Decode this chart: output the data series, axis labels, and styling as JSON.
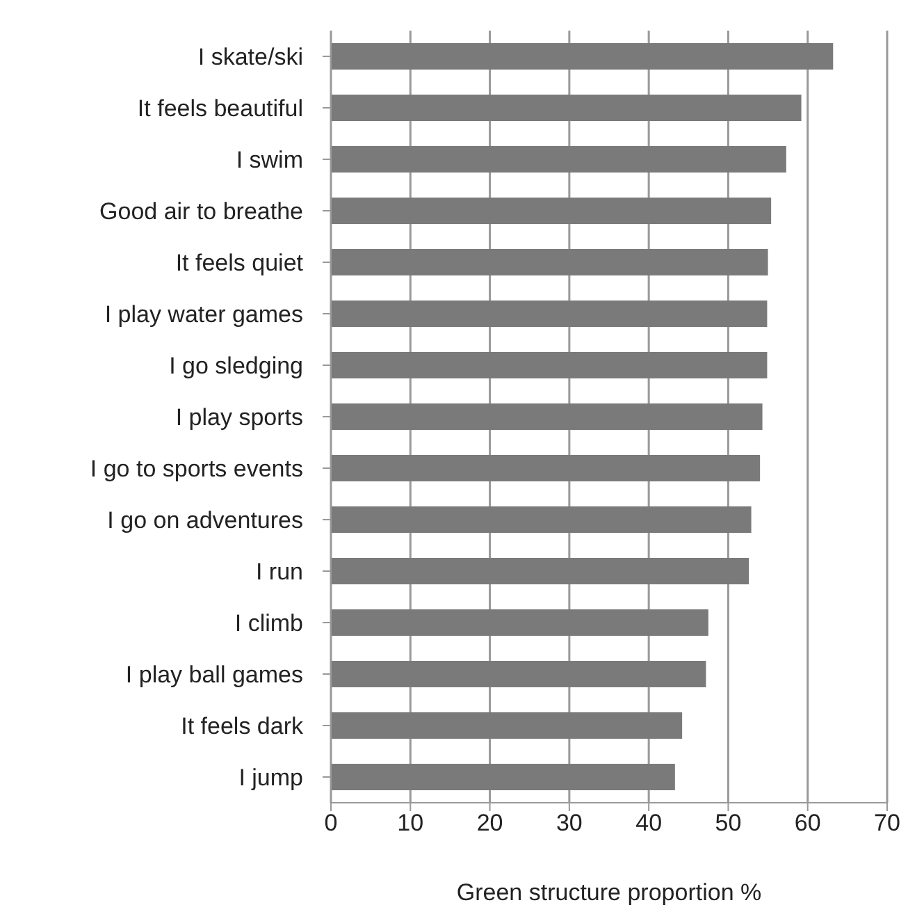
{
  "chart_data": {
    "type": "bar",
    "orientation": "horizontal",
    "xlabel": "Green structure proportion %",
    "categories": [
      "I skate/ski",
      "It feels beautiful",
      "I swim",
      "Good air to breathe",
      "It feels quiet",
      "I play water games",
      "I go sledging",
      "I play sports",
      "I go to sports events",
      "I go on adventures",
      "I run",
      "I climb",
      "I play ball games",
      "It feels dark",
      "I jump"
    ],
    "values": [
      63.2,
      59.2,
      57.3,
      55.4,
      55.0,
      54.9,
      54.9,
      54.3,
      54.0,
      52.9,
      52.6,
      47.5,
      47.2,
      44.2,
      43.3
    ],
    "color": "#7a7a7a",
    "xlim": [
      0,
      70
    ],
    "xticks": [
      0,
      10,
      20,
      30,
      40,
      50,
      60,
      70
    ],
    "grid": "x"
  }
}
